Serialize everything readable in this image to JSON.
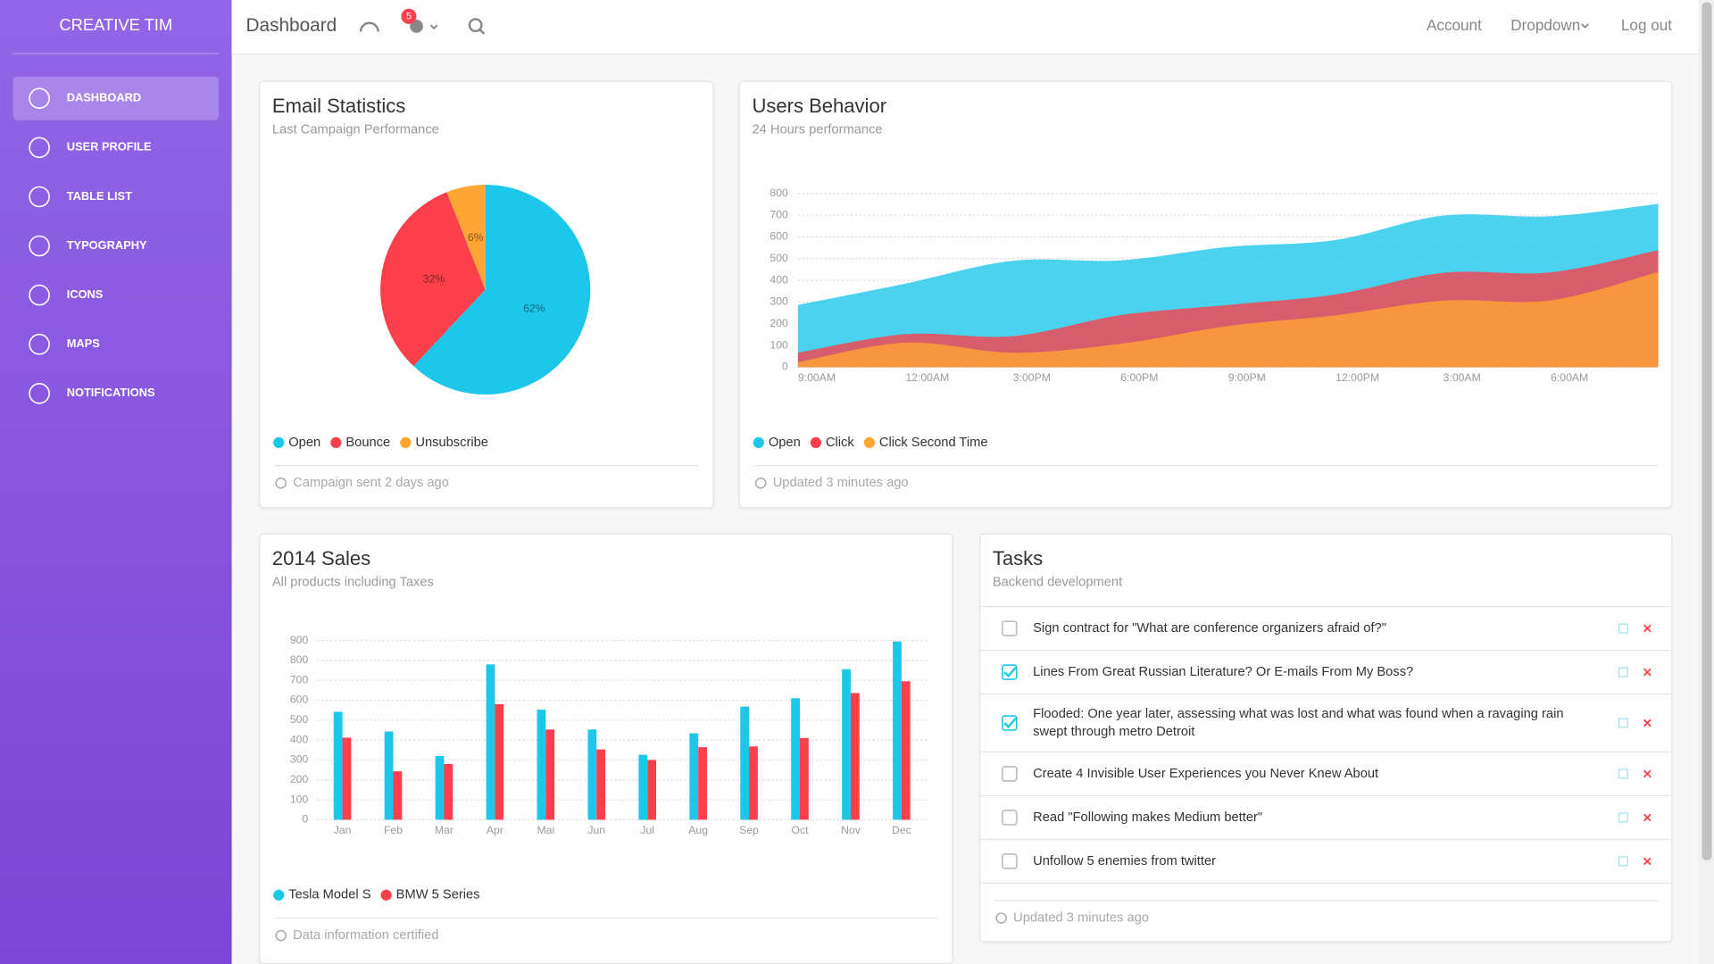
{
  "sidebar": {
    "brand": "CREATIVE TIM",
    "items": [
      "DASHBOARD",
      "USER PROFILE",
      "TABLE LIST",
      "TYPOGRAPHY",
      "ICONS",
      "MAPS",
      "NOTIFICATIONS"
    ],
    "active": 0
  },
  "navbar": {
    "title": "Dashboard",
    "badge": 5,
    "links": [
      "Account",
      "Dropdown",
      "Log out"
    ]
  },
  "chart_data": [
    {
      "type": "pie",
      "title": "Email Statistics",
      "subtitle": "Last Campaign Performance",
      "categories": [
        "Open",
        "Bounce",
        "Unsubscribe"
      ],
      "values": [
        62,
        32,
        6
      ],
      "value_labels": [
        "62%",
        "32%",
        "6%"
      ],
      "colors": [
        "#1DC7EA",
        "#FB404B",
        "#FFA534"
      ],
      "footer": "Campaign sent 2 days ago"
    },
    {
      "type": "area",
      "title": "Users Behavior",
      "subtitle": "24 Hours performance",
      "categories": [
        "9:00AM",
        "12:00AM",
        "3:00PM",
        "6:00PM",
        "9:00PM",
        "12:00PM",
        "3:00AM",
        "6:00AM",
        null
      ],
      "series": [
        {
          "name": "Open",
          "color": "#1DC7EA",
          "values": [
            287,
            385,
            490,
            492,
            554,
            586,
            698,
            695,
            752
          ]
        },
        {
          "name": "Click",
          "color": "#FB404B",
          "values": [
            67,
            152,
            143,
            240,
            287,
            335,
            435,
            437,
            539
          ]
        },
        {
          "name": "Click Second Time",
          "color": "#FFA534",
          "values": [
            23,
            113,
            67,
            108,
            190,
            239,
            307,
            308,
            439
          ]
        }
      ],
      "ylim": [
        0,
        800
      ],
      "yticks": [
        0,
        100,
        200,
        300,
        400,
        500,
        600,
        700,
        800
      ],
      "grid": true,
      "footer": "Updated 3 minutes ago"
    },
    {
      "type": "bar",
      "title": "2014 Sales",
      "subtitle": "All products including Taxes",
      "categories": [
        "Jan",
        "Feb",
        "Mar",
        "Apr",
        "Mai",
        "Jun",
        "Jul",
        "Aug",
        "Sep",
        "Oct",
        "Nov",
        "Dec"
      ],
      "series": [
        {
          "name": "Tesla Model S",
          "color": "#1DC7EA",
          "values": [
            542,
            443,
            320,
            780,
            553,
            453,
            326,
            434,
            568,
            610,
            756,
            895
          ]
        },
        {
          "name": "BMW 5 Series",
          "color": "#FB404B",
          "values": [
            412,
            243,
            280,
            580,
            453,
            353,
            300,
            364,
            368,
            410,
            636,
            695
          ]
        }
      ],
      "ylim": [
        0,
        900
      ],
      "yticks": [
        0,
        100,
        200,
        300,
        400,
        500,
        600,
        700,
        800,
        900
      ],
      "grid": true,
      "footer": "Data information certified"
    }
  ],
  "tasks": {
    "title": "Tasks",
    "subtitle": "Backend development",
    "items": [
      {
        "text": "Sign contract for \"What are conference organizers afraid of?\"",
        "checked": false
      },
      {
        "text": "Lines From Great Russian Literature? Or E-mails From My Boss?",
        "checked": true
      },
      {
        "text": "Flooded: One year later, assessing what was lost and what was found when a ravaging rain swept through metro Detroit",
        "checked": true
      },
      {
        "text": "Create 4 Invisible User Experiences you Never Knew About",
        "checked": false
      },
      {
        "text": "Read \"Following makes Medium better\"",
        "checked": false
      },
      {
        "text": "Unfollow 5 enemies from twitter",
        "checked": false
      }
    ],
    "footer": "Updated 3 minutes ago"
  }
}
